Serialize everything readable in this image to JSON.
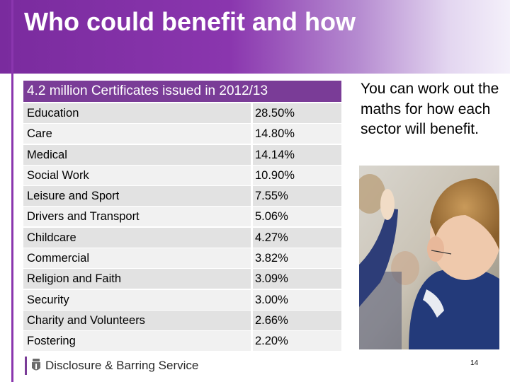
{
  "slide": {
    "title": "Who could benefit and how",
    "table_title": "4.2 million Certificates issued in 2012/13",
    "rows": [
      {
        "sector": "Education",
        "share": "28.50%"
      },
      {
        "sector": "Care",
        "share": "14.80%"
      },
      {
        "sector": "Medical",
        "share": "14.14%"
      },
      {
        "sector": "Social Work",
        "share": "10.90%"
      },
      {
        "sector": "Leisure and Sport",
        "share": "7.55%"
      },
      {
        "sector": "Drivers and Transport",
        "share": "5.06%"
      },
      {
        "sector": "Childcare",
        "share": "4.27%"
      },
      {
        "sector": "Commercial",
        "share": "3.82%"
      },
      {
        "sector": "Religion and Faith",
        "share": "3.09%"
      },
      {
        "sector": "Security",
        "share": "3.00%"
      },
      {
        "sector": "Charity and Volunteers",
        "share": "2.66%"
      },
      {
        "sector": "Fostering",
        "share": "2.20%"
      }
    ],
    "side_text": "You can work out the maths for how each sector will benefit.",
    "page_number": "14"
  },
  "footer": {
    "logo_text": "Disclosure & Barring Service"
  },
  "colors": {
    "brand_purple": "#7a3c97",
    "header_purple": "#8a36ae"
  }
}
